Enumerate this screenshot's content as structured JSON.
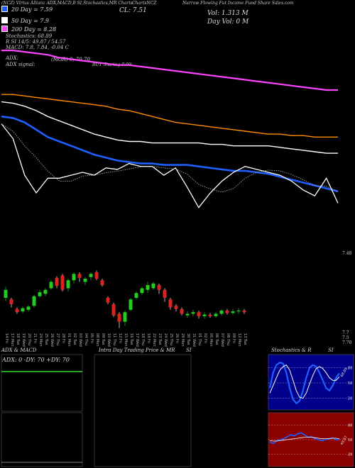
{
  "header": {
    "ticker_line": "(NCZ) Virtus Allianz ADX,MACD,B SI,Stochastics,MR Charts",
    "close": "CL: 7.51",
    "ticker_right": "ChartsNCZ",
    "title": "Narrow Flowing Fut Income Fund Share Sales.com",
    "volume": "Vol: 1.313 M",
    "day_volume": "Day Vol: 0  M"
  },
  "legend": [
    {
      "label": "20 Day = 7.59",
      "color": "#1f5fff"
    },
    {
      "label": "50 Day = 7.9",
      "color": "#ffffff"
    },
    {
      "label": "200 Day = 8.28",
      "color": "#ff44ff"
    }
  ],
  "indicators": {
    "stoch": "Stochastics: 68.89",
    "rsi": "R   SI 14/5: 49.87 / 54.57",
    "macd": "MACD: 7.8, 7.84, -0.04  C",
    "adx": "ADX:",
    "adx_signal": "ADX  signal:",
    "mr": "(MGR) 0; 70   70",
    "buy": "BUY Sharing 0.0%"
  },
  "price_marker": "7.48",
  "candle_axis_right": [
    "7.7",
    "7.5",
    "7.70"
  ],
  "chart_data": {
    "type": "line",
    "title": "",
    "series": [
      {
        "name": "20 Day",
        "color": "#1f5fff",
        "values": [
          8.1,
          8.09,
          8.06,
          8.01,
          7.96,
          7.93,
          7.9,
          7.87,
          7.84,
          7.82,
          7.8,
          7.79,
          7.78,
          7.78,
          7.77,
          7.77,
          7.77,
          7.76,
          7.75,
          7.74,
          7.73,
          7.73,
          7.72,
          7.71,
          7.69,
          7.67,
          7.65,
          7.63,
          7.61,
          7.59
        ]
      },
      {
        "name": "50 Day",
        "color": "#ffffff",
        "values": [
          8.2,
          8.19,
          8.17,
          8.14,
          8.1,
          8.07,
          8.04,
          8.01,
          7.98,
          7.96,
          7.94,
          7.93,
          7.93,
          7.92,
          7.92,
          7.92,
          7.92,
          7.92,
          7.91,
          7.91,
          7.9,
          7.9,
          7.9,
          7.9,
          7.89,
          7.88,
          7.87,
          7.86,
          7.85,
          7.85
        ]
      },
      {
        "name": "200 Day",
        "color": "#ff44ff",
        "values": [
          8.55,
          8.55,
          8.54,
          8.53,
          8.52,
          8.5,
          8.49,
          8.48,
          8.47,
          8.46,
          8.45,
          8.45,
          8.44,
          8.43,
          8.42,
          8.41,
          8.4,
          8.39,
          8.38,
          8.37,
          8.36,
          8.35,
          8.34,
          8.33,
          8.32,
          8.31,
          8.3,
          8.29,
          8.28,
          8.28
        ]
      },
      {
        "name": "orange",
        "color": "#ff8c00",
        "values": [
          8.25,
          8.25,
          8.24,
          8.23,
          8.22,
          8.21,
          8.2,
          8.19,
          8.18,
          8.17,
          8.15,
          8.14,
          8.12,
          8.1,
          8.08,
          8.06,
          8.05,
          8.04,
          8.03,
          8.02,
          8.01,
          8.0,
          7.99,
          7.98,
          7.98,
          7.97,
          7.97,
          7.96,
          7.96,
          7.96
        ]
      },
      {
        "name": "Close",
        "color": "#ffffff",
        "values": [
          8.05,
          7.95,
          7.7,
          7.58,
          7.68,
          7.68,
          7.7,
          7.72,
          7.7,
          7.75,
          7.74,
          7.78,
          7.76,
          7.76,
          7.7,
          7.75,
          7.62,
          7.48,
          7.58,
          7.66,
          7.72,
          7.76,
          7.74,
          7.72,
          7.7,
          7.66,
          7.6,
          7.56,
          7.68,
          7.51
        ]
      }
    ],
    "ylim": [
      7.3,
      8.7
    ]
  },
  "candles": [
    {
      "o": 7.5,
      "c": 7.6,
      "h": 7.64,
      "l": 7.46
    },
    {
      "o": 7.48,
      "c": 7.42,
      "h": 7.5,
      "l": 7.38
    },
    {
      "o": 7.36,
      "c": 7.32,
      "h": 7.38,
      "l": 7.3
    },
    {
      "o": 7.33,
      "c": 7.37,
      "h": 7.39,
      "l": 7.31
    },
    {
      "o": 7.35,
      "c": 7.39,
      "h": 7.41,
      "l": 7.33
    },
    {
      "o": 7.4,
      "c": 7.52,
      "h": 7.54,
      "l": 7.38
    },
    {
      "o": 7.52,
      "c": 7.57,
      "h": 7.6,
      "l": 7.5
    },
    {
      "o": 7.55,
      "c": 7.6,
      "h": 7.62,
      "l": 7.52
    },
    {
      "o": 7.62,
      "c": 7.7,
      "h": 7.72,
      "l": 7.6
    },
    {
      "o": 7.75,
      "c": 7.65,
      "h": 7.77,
      "l": 7.62
    },
    {
      "o": 7.78,
      "c": 7.6,
      "h": 7.8,
      "l": 7.58
    },
    {
      "o": 7.62,
      "c": 7.72,
      "h": 7.74,
      "l": 7.58
    },
    {
      "o": 7.72,
      "c": 7.8,
      "h": 7.82,
      "l": 7.68
    },
    {
      "o": 7.8,
      "c": 7.75,
      "h": 7.82,
      "l": 7.7
    },
    {
      "o": 7.7,
      "c": 7.74,
      "h": 7.76,
      "l": 7.66
    },
    {
      "o": 7.76,
      "c": 7.8,
      "h": 7.82,
      "l": 7.72
    },
    {
      "o": 7.82,
      "c": 7.74,
      "h": 7.84,
      "l": 7.72
    },
    {
      "o": 7.72,
      "c": 7.66,
      "h": 7.74,
      "l": 7.64
    },
    {
      "o": 7.5,
      "c": 7.44,
      "h": 7.52,
      "l": 7.42
    },
    {
      "o": 7.42,
      "c": 7.28,
      "h": 7.44,
      "l": 7.26
    },
    {
      "o": 7.3,
      "c": 7.2,
      "h": 7.32,
      "l": 7.12
    },
    {
      "o": 7.2,
      "c": 7.32,
      "h": 7.34,
      "l": 7.15
    },
    {
      "o": 7.35,
      "c": 7.48,
      "h": 7.5,
      "l": 7.33
    },
    {
      "o": 7.5,
      "c": 7.56,
      "h": 7.58,
      "l": 7.48
    },
    {
      "o": 7.56,
      "c": 7.62,
      "h": 7.64,
      "l": 7.54
    },
    {
      "o": 7.6,
      "c": 7.66,
      "h": 7.7,
      "l": 7.56
    },
    {
      "o": 7.62,
      "c": 7.68,
      "h": 7.7,
      "l": 7.6
    },
    {
      "o": 7.66,
      "c": 7.6,
      "h": 7.68,
      "l": 7.55
    },
    {
      "o": 7.6,
      "c": 7.5,
      "h": 7.62,
      "l": 7.45
    },
    {
      "o": 7.48,
      "c": 7.38,
      "h": 7.5,
      "l": 7.35
    },
    {
      "o": 7.4,
      "c": 7.36,
      "h": 7.42,
      "l": 7.33
    },
    {
      "o": 7.36,
      "c": 7.3,
      "h": 7.38,
      "l": 7.28
    },
    {
      "o": 7.28,
      "c": 7.3,
      "h": 7.33,
      "l": 7.25
    },
    {
      "o": 7.3,
      "c": 7.32,
      "h": 7.35,
      "l": 7.27
    },
    {
      "o": 7.32,
      "c": 7.27,
      "h": 7.34,
      "l": 7.24
    },
    {
      "o": 7.27,
      "c": 7.29,
      "h": 7.32,
      "l": 7.24
    },
    {
      "o": 7.29,
      "c": 7.27,
      "h": 7.31,
      "l": 7.25
    },
    {
      "o": 7.27,
      "c": 7.3,
      "h": 7.32,
      "l": 7.25
    },
    {
      "o": 7.3,
      "c": 7.34,
      "h": 7.36,
      "l": 7.28
    },
    {
      "o": 7.34,
      "c": 7.31,
      "h": 7.36,
      "l": 7.29
    },
    {
      "o": 7.31,
      "c": 7.33,
      "h": 7.36,
      "l": 7.29
    },
    {
      "o": 7.33,
      "c": 7.34,
      "h": 7.37,
      "l": 7.3
    },
    {
      "o": 7.34,
      "c": 7.32,
      "h": 7.36,
      "l": 7.3
    }
  ],
  "dates": [
    "14 Fri",
    "17 Mon",
    "18 Tue",
    "19 Wed",
    "20 Thu",
    "21 Fri",
    "24 Mon",
    "25 Tue",
    "26 Wed",
    "27 Thu",
    "28 Fri",
    "01 Mon",
    "02 Tue",
    "03 Wed",
    "04 Thu",
    "05 Fri",
    "08 Mon",
    "09 Tue",
    "10 Wed",
    "11 Thu",
    "12 Fri",
    "15 Mon",
    "16 Tue",
    "17 Wed",
    "18 Thu",
    "19 Fri",
    "22 Mon",
    "23 Tue",
    "24 Wed",
    "25 Thu",
    "26 Fri",
    "29 Mon",
    "30 Tue",
    "31 Wed",
    "01 Thu",
    "02 Fri",
    "05 Mon",
    "06 Tue",
    "07 Wed",
    "08 Thu",
    "09 Fri",
    "12 Mon",
    "13 Tue"
  ],
  "panels": {
    "adx_title": "ADX  & MACD",
    "adx_values": "ADX: 0  -DY: 70  +DY: 70",
    "mr_title": "Intra  Day Trading Price  & MR",
    "si_title": "SI",
    "stoch_title": "Stochastics & R",
    "si_title2": "SI",
    "stoch_axis": [
      "80",
      "50",
      "20"
    ],
    "rsi_axis": [
      "80",
      "50",
      "20"
    ],
    "stoch_label": "68.89",
    "rsi_label": "49.87"
  },
  "stoch_k": [
    40,
    70,
    85,
    90,
    88,
    70,
    40,
    18,
    10,
    15,
    35,
    60,
    80,
    85,
    82,
    70,
    55,
    40,
    35,
    45,
    60,
    68.89
  ],
  "stoch_d": [
    30,
    45,
    60,
    75,
    82,
    85,
    75,
    55,
    35,
    22,
    20,
    30,
    48,
    65,
    78,
    82,
    78,
    70,
    60,
    55,
    55,
    62
  ],
  "rsi_series": [
    45,
    42,
    48,
    50,
    52,
    56,
    60,
    58,
    62,
    64,
    60,
    55,
    56,
    52,
    50,
    48,
    50,
    52,
    54,
    50,
    49.87
  ],
  "rsi_avg": [
    48,
    47,
    47,
    48,
    49,
    50,
    51,
    52,
    53,
    54,
    55,
    55,
    55,
    54,
    53,
    52,
    52,
    52,
    53,
    53,
    52
  ]
}
